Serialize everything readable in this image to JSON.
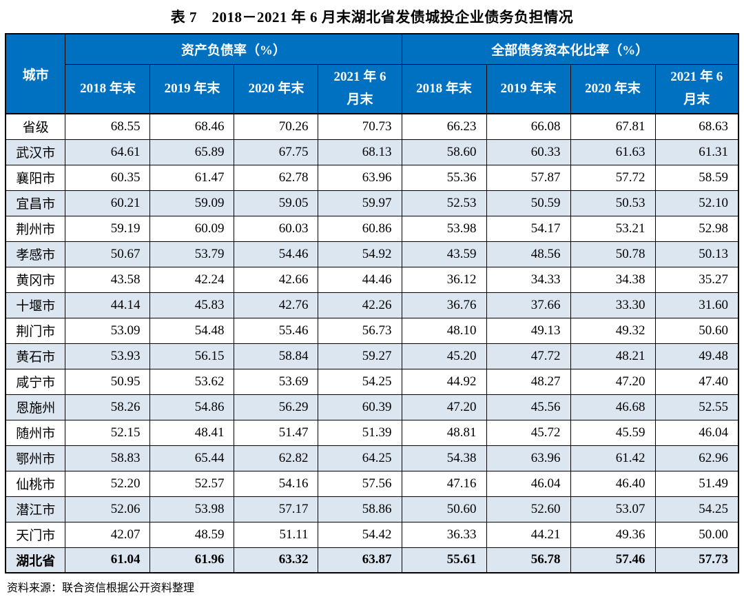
{
  "title": "表 7　2018－2021 年 6 月末湖北省发债城投企业债务负担情况",
  "source_note": "资料来源：联合资信根据公开资料整理",
  "colors": {
    "header_bg": "#0070C0",
    "header_text": "#ffffff",
    "row_alt_bg": "#DCE6F1",
    "border": "#000000"
  },
  "table": {
    "corner_header": "城市",
    "groups": [
      {
        "label": "资产负债率（%）"
      },
      {
        "label": "全部债务资本化比率（%）"
      }
    ],
    "period_headers": [
      "2018 年末",
      "2019 年末",
      "2020 年末",
      "2021 年 6\n月末"
    ],
    "rows": [
      {
        "city": "省级",
        "alr": [
          "68.55",
          "68.46",
          "70.26",
          "70.73"
        ],
        "dcr": [
          "66.23",
          "66.08",
          "67.81",
          "68.63"
        ],
        "bold": false
      },
      {
        "city": "武汉市",
        "alr": [
          "64.61",
          "65.89",
          "67.75",
          "68.13"
        ],
        "dcr": [
          "58.60",
          "60.33",
          "61.63",
          "61.31"
        ],
        "bold": false
      },
      {
        "city": "襄阳市",
        "alr": [
          "60.35",
          "61.47",
          "62.78",
          "63.96"
        ],
        "dcr": [
          "55.36",
          "57.87",
          "57.72",
          "58.59"
        ],
        "bold": false
      },
      {
        "city": "宜昌市",
        "alr": [
          "60.21",
          "59.09",
          "59.05",
          "59.97"
        ],
        "dcr": [
          "52.53",
          "50.59",
          "50.53",
          "52.10"
        ],
        "bold": false
      },
      {
        "city": "荆州市",
        "alr": [
          "59.19",
          "60.09",
          "60.03",
          "60.86"
        ],
        "dcr": [
          "53.98",
          "54.17",
          "53.21",
          "52.98"
        ],
        "bold": false
      },
      {
        "city": "孝感市",
        "alr": [
          "50.67",
          "53.79",
          "54.46",
          "54.92"
        ],
        "dcr": [
          "43.59",
          "48.56",
          "50.78",
          "50.13"
        ],
        "bold": false
      },
      {
        "city": "黄冈市",
        "alr": [
          "43.58",
          "42.24",
          "42.66",
          "44.46"
        ],
        "dcr": [
          "36.12",
          "34.33",
          "34.38",
          "35.27"
        ],
        "bold": false
      },
      {
        "city": "十堰市",
        "alr": [
          "44.14",
          "45.83",
          "42.76",
          "42.26"
        ],
        "dcr": [
          "36.76",
          "37.66",
          "33.30",
          "31.60"
        ],
        "bold": false
      },
      {
        "city": "荆门市",
        "alr": [
          "53.09",
          "54.48",
          "55.46",
          "56.73"
        ],
        "dcr": [
          "48.10",
          "49.13",
          "49.32",
          "50.60"
        ],
        "bold": false
      },
      {
        "city": "黄石市",
        "alr": [
          "53.93",
          "56.15",
          "58.84",
          "59.27"
        ],
        "dcr": [
          "45.20",
          "47.72",
          "48.21",
          "49.48"
        ],
        "bold": false
      },
      {
        "city": "咸宁市",
        "alr": [
          "50.95",
          "53.62",
          "53.69",
          "54.25"
        ],
        "dcr": [
          "44.92",
          "48.27",
          "47.20",
          "47.40"
        ],
        "bold": false
      },
      {
        "city": "恩施州",
        "alr": [
          "58.26",
          "54.86",
          "56.29",
          "60.39"
        ],
        "dcr": [
          "47.20",
          "45.56",
          "46.68",
          "52.55"
        ],
        "bold": false
      },
      {
        "city": "随州市",
        "alr": [
          "52.15",
          "48.41",
          "51.47",
          "51.39"
        ],
        "dcr": [
          "48.81",
          "45.72",
          "45.59",
          "46.04"
        ],
        "bold": false
      },
      {
        "city": "鄂州市",
        "alr": [
          "58.83",
          "65.44",
          "62.82",
          "64.25"
        ],
        "dcr": [
          "54.38",
          "63.96",
          "61.42",
          "62.96"
        ],
        "bold": false
      },
      {
        "city": "仙桃市",
        "alr": [
          "52.20",
          "52.57",
          "54.16",
          "57.56"
        ],
        "dcr": [
          "47.16",
          "46.04",
          "46.40",
          "51.49"
        ],
        "bold": false
      },
      {
        "city": "潜江市",
        "alr": [
          "52.06",
          "53.98",
          "57.17",
          "58.86"
        ],
        "dcr": [
          "50.60",
          "52.60",
          "53.07",
          "54.25"
        ],
        "bold": false
      },
      {
        "city": "天门市",
        "alr": [
          "42.07",
          "48.59",
          "51.11",
          "54.42"
        ],
        "dcr": [
          "36.33",
          "44.21",
          "49.36",
          "50.00"
        ],
        "bold": false
      },
      {
        "city": "湖北省",
        "alr": [
          "61.04",
          "61.96",
          "63.32",
          "63.87"
        ],
        "dcr": [
          "55.61",
          "56.78",
          "57.46",
          "57.73"
        ],
        "bold": true
      }
    ]
  }
}
